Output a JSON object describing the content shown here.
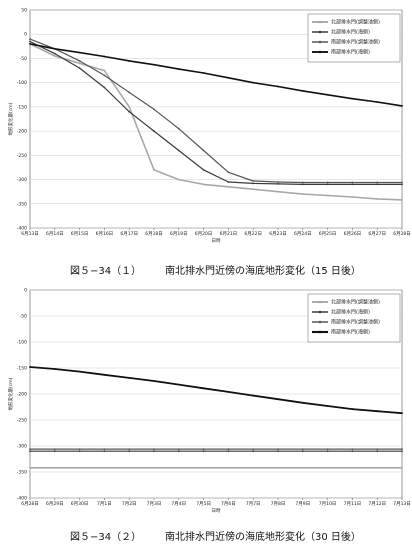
{
  "figures": [
    {
      "caption_number": "図５−34（１）",
      "caption_title": "南北排水門近傍の海底地形変化（15 日後）"
    },
    {
      "caption_number": "図５−34（２）",
      "caption_title": "南北排水門近傍の海底地形変化（30 日後）"
    }
  ],
  "chart_data": [
    {
      "type": "line",
      "title": "",
      "xlabel": "日時",
      "ylabel": "地形変化量(cm)",
      "ylim": [
        -400,
        50
      ],
      "yticks": [
        50,
        0,
        -50,
        -100,
        -150,
        -200,
        -250,
        -300,
        -350,
        -400
      ],
      "categories": [
        "6月13日",
        "6月14日",
        "6月15日",
        "6月16日",
        "6月17日",
        "6月18日",
        "6月19日",
        "6月20日",
        "6月21日",
        "6月22日",
        "6月23日",
        "6月24日",
        "6月25日",
        "6月26日",
        "6月27日",
        "6月28日"
      ],
      "grid": true,
      "legend": "top-right",
      "series": [
        {
          "name": "北部排水門(調整池側)",
          "color": "#a8a8a8",
          "width": 1.6,
          "values": [
            -20,
            -45,
            -60,
            -75,
            -150,
            -280,
            -300,
            -310,
            -315,
            -320,
            -325,
            -330,
            -333,
            -336,
            -340,
            -342
          ]
        },
        {
          "name": "北部排水門(海側)",
          "color": "#3a3a3a",
          "width": 1.2,
          "values": [
            -15,
            -40,
            -70,
            -110,
            -160,
            -200,
            -240,
            -280,
            -305,
            -308,
            -309,
            -310,
            -310,
            -310,
            -310,
            -310
          ]
        },
        {
          "name": "南部排水門(調整池側)",
          "color": "#555555",
          "width": 1.2,
          "values": [
            -10,
            -30,
            -55,
            -85,
            -120,
            -155,
            -195,
            -240,
            -285,
            -303,
            -305,
            -306,
            -306,
            -306,
            -306,
            -306
          ]
        },
        {
          "name": "南部排水門(海側)",
          "color": "#111111",
          "width": 1.6,
          "values": [
            -20,
            -30,
            -38,
            -46,
            -55,
            -63,
            -72,
            -80,
            -90,
            -100,
            -108,
            -117,
            -125,
            -133,
            -140,
            -148
          ]
        }
      ]
    },
    {
      "type": "line",
      "title": "",
      "xlabel": "日時",
      "ylabel": "地形変化量(cm)",
      "ylim": [
        -400,
        0
      ],
      "yticks": [
        0,
        -50,
        -100,
        -150,
        -200,
        -250,
        -300,
        -350,
        -400
      ],
      "categories": [
        "6月28日",
        "6月29日",
        "6月30日",
        "7月1日",
        "7月2日",
        "7月3日",
        "7月4日",
        "7月5日",
        "7月6日",
        "7月7日",
        "7月8日",
        "7月9日",
        "7月10日",
        "7月11日",
        "7月12日",
        "7月13日"
      ],
      "grid": true,
      "legend": "top-right",
      "series": [
        {
          "name": "北部排水門(調整池側)",
          "color": "#a8a8a8",
          "width": 1.6,
          "values": [
            -342,
            -342,
            -342,
            -342,
            -342,
            -342,
            -342,
            -342,
            -342,
            -342,
            -342,
            -342,
            -342,
            -342,
            -342,
            -342
          ]
        },
        {
          "name": "北部排水門(海側)",
          "color": "#3a3a3a",
          "width": 1.2,
          "values": [
            -310,
            -310,
            -310,
            -310,
            -310,
            -310,
            -310,
            -310,
            -310,
            -310,
            -310,
            -310,
            -310,
            -310,
            -310,
            -310
          ]
        },
        {
          "name": "南部排水門(調整池側)",
          "color": "#555555",
          "width": 1.2,
          "values": [
            -306,
            -306,
            -306,
            -306,
            -306,
            -306,
            -306,
            -306,
            -306,
            -306,
            -306,
            -306,
            -306,
            -306,
            -306,
            -306
          ]
        },
        {
          "name": "南部排水門(海側)",
          "color": "#111111",
          "width": 1.8,
          "values": [
            -148,
            -152,
            -157,
            -163,
            -169,
            -175,
            -182,
            -189,
            -196,
            -203,
            -210,
            -217,
            -223,
            -229,
            -233,
            -237
          ]
        }
      ]
    }
  ]
}
